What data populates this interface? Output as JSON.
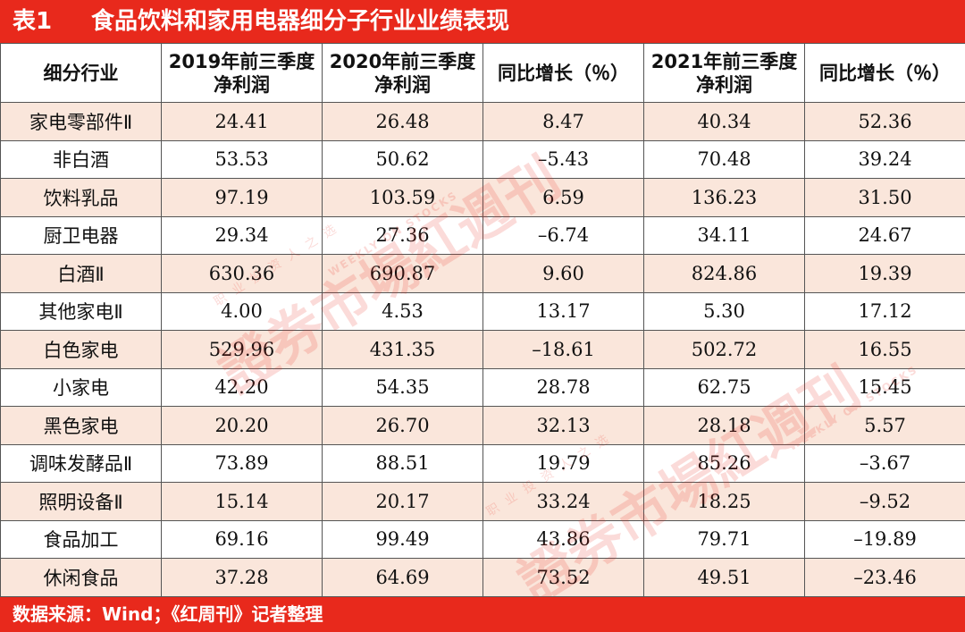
{
  "title": {
    "number": "表1",
    "text": "食品饮料和家用电器细分子行业业绩表现"
  },
  "table": {
    "headers": [
      {
        "line1": "细分行业",
        "line2": ""
      },
      {
        "line1": "2019年前三季度",
        "line2": "净利润"
      },
      {
        "line1": "2020年前三季度",
        "line2": "净利润"
      },
      {
        "line1": "同比增长（％）",
        "line2": ""
      },
      {
        "line1": "2021年前三季度",
        "line2": "净利润"
      },
      {
        "line1": "同比增长（％）",
        "line2": ""
      }
    ],
    "rows": [
      [
        "家电零部件Ⅱ",
        "24.41",
        "26.48",
        "8.47",
        "40.34",
        "52.36"
      ],
      [
        "非白酒",
        "53.53",
        "50.62",
        "–5.43",
        "70.48",
        "39.24"
      ],
      [
        "饮料乳品",
        "97.19",
        "103.59",
        "6.59",
        "136.23",
        "31.50"
      ],
      [
        "厨卫电器",
        "29.34",
        "27.36",
        "–6.74",
        "34.11",
        "24.67"
      ],
      [
        "白酒Ⅱ",
        "630.36",
        "690.87",
        "9.60",
        "824.86",
        "19.39"
      ],
      [
        "其他家电Ⅱ",
        "4.00",
        "4.53",
        "13.17",
        "5.30",
        "17.12"
      ],
      [
        "白色家电",
        "529.96",
        "431.35",
        "–18.61",
        "502.72",
        "16.55"
      ],
      [
        "小家电",
        "42.20",
        "54.35",
        "28.78",
        "62.75",
        "15.45"
      ],
      [
        "黑色家电",
        "20.20",
        "26.70",
        "32.13",
        "28.18",
        "5.57"
      ],
      [
        "调味发酵品Ⅱ",
        "73.89",
        "88.51",
        "19.79",
        "85.26",
        "–3.67"
      ],
      [
        "照明设备Ⅱ",
        "15.14",
        "20.17",
        "33.24",
        "18.25",
        "–9.52"
      ],
      [
        "食品加工",
        "69.16",
        "99.49",
        "43.86",
        "79.71",
        "–19.89"
      ],
      [
        "休闲食品",
        "37.28",
        "64.69",
        "73.52",
        "49.51",
        "–23.46"
      ]
    ]
  },
  "footer": {
    "text": "数据来源：Wind；《红周刊》记者整理"
  },
  "watermark": {
    "main": "證券市場紅週刊",
    "tagline": "职业投资人之选",
    "english": "WEEKLY ON STOCKS",
    "color": "#e8291c"
  },
  "colors": {
    "accent": "#e8291c",
    "row_shade": "#fae6db"
  }
}
